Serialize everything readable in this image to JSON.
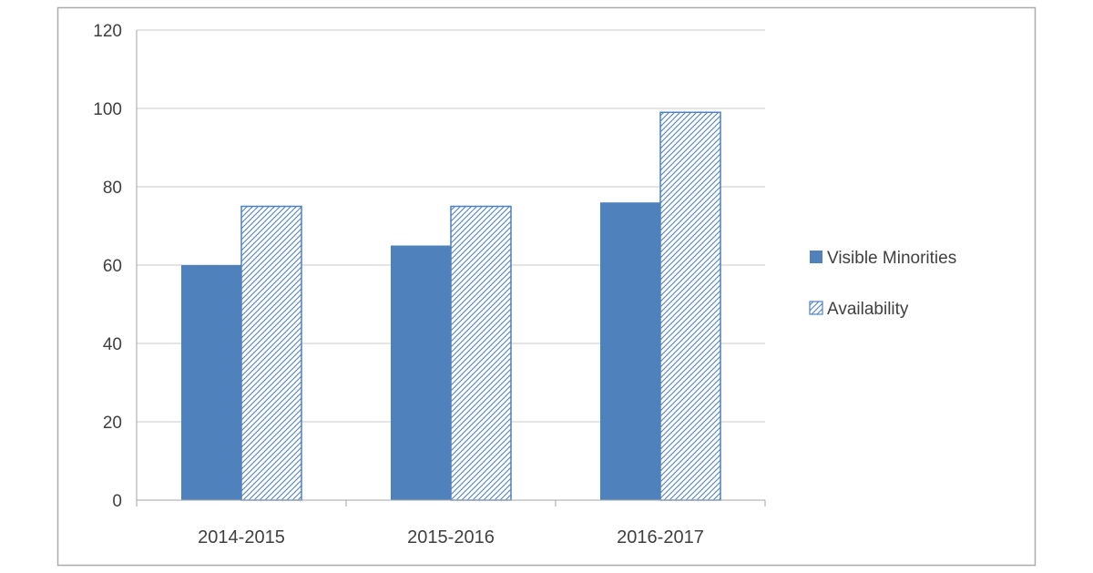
{
  "chart_data": {
    "type": "bar",
    "title": "",
    "categories": [
      "2014-2015",
      "2015-2016",
      "2016-2017"
    ],
    "series": [
      {
        "name": "Visible Minorities",
        "pattern": "solid",
        "color": "#4f81bd",
        "values": [
          60,
          65,
          76
        ]
      },
      {
        "name": "Availability",
        "pattern": "hatch",
        "color": "#4f81bd",
        "values": [
          75,
          75,
          99
        ]
      }
    ],
    "ylim": [
      0,
      120
    ],
    "yticks": [
      0,
      20,
      40,
      60,
      80,
      100,
      120
    ],
    "grid": true,
    "legend_position": "right",
    "gridline_color": "#c9c9c9",
    "axis_color": "#a6a6a6",
    "frame_color": "#ababab",
    "text_color": "#404040"
  }
}
